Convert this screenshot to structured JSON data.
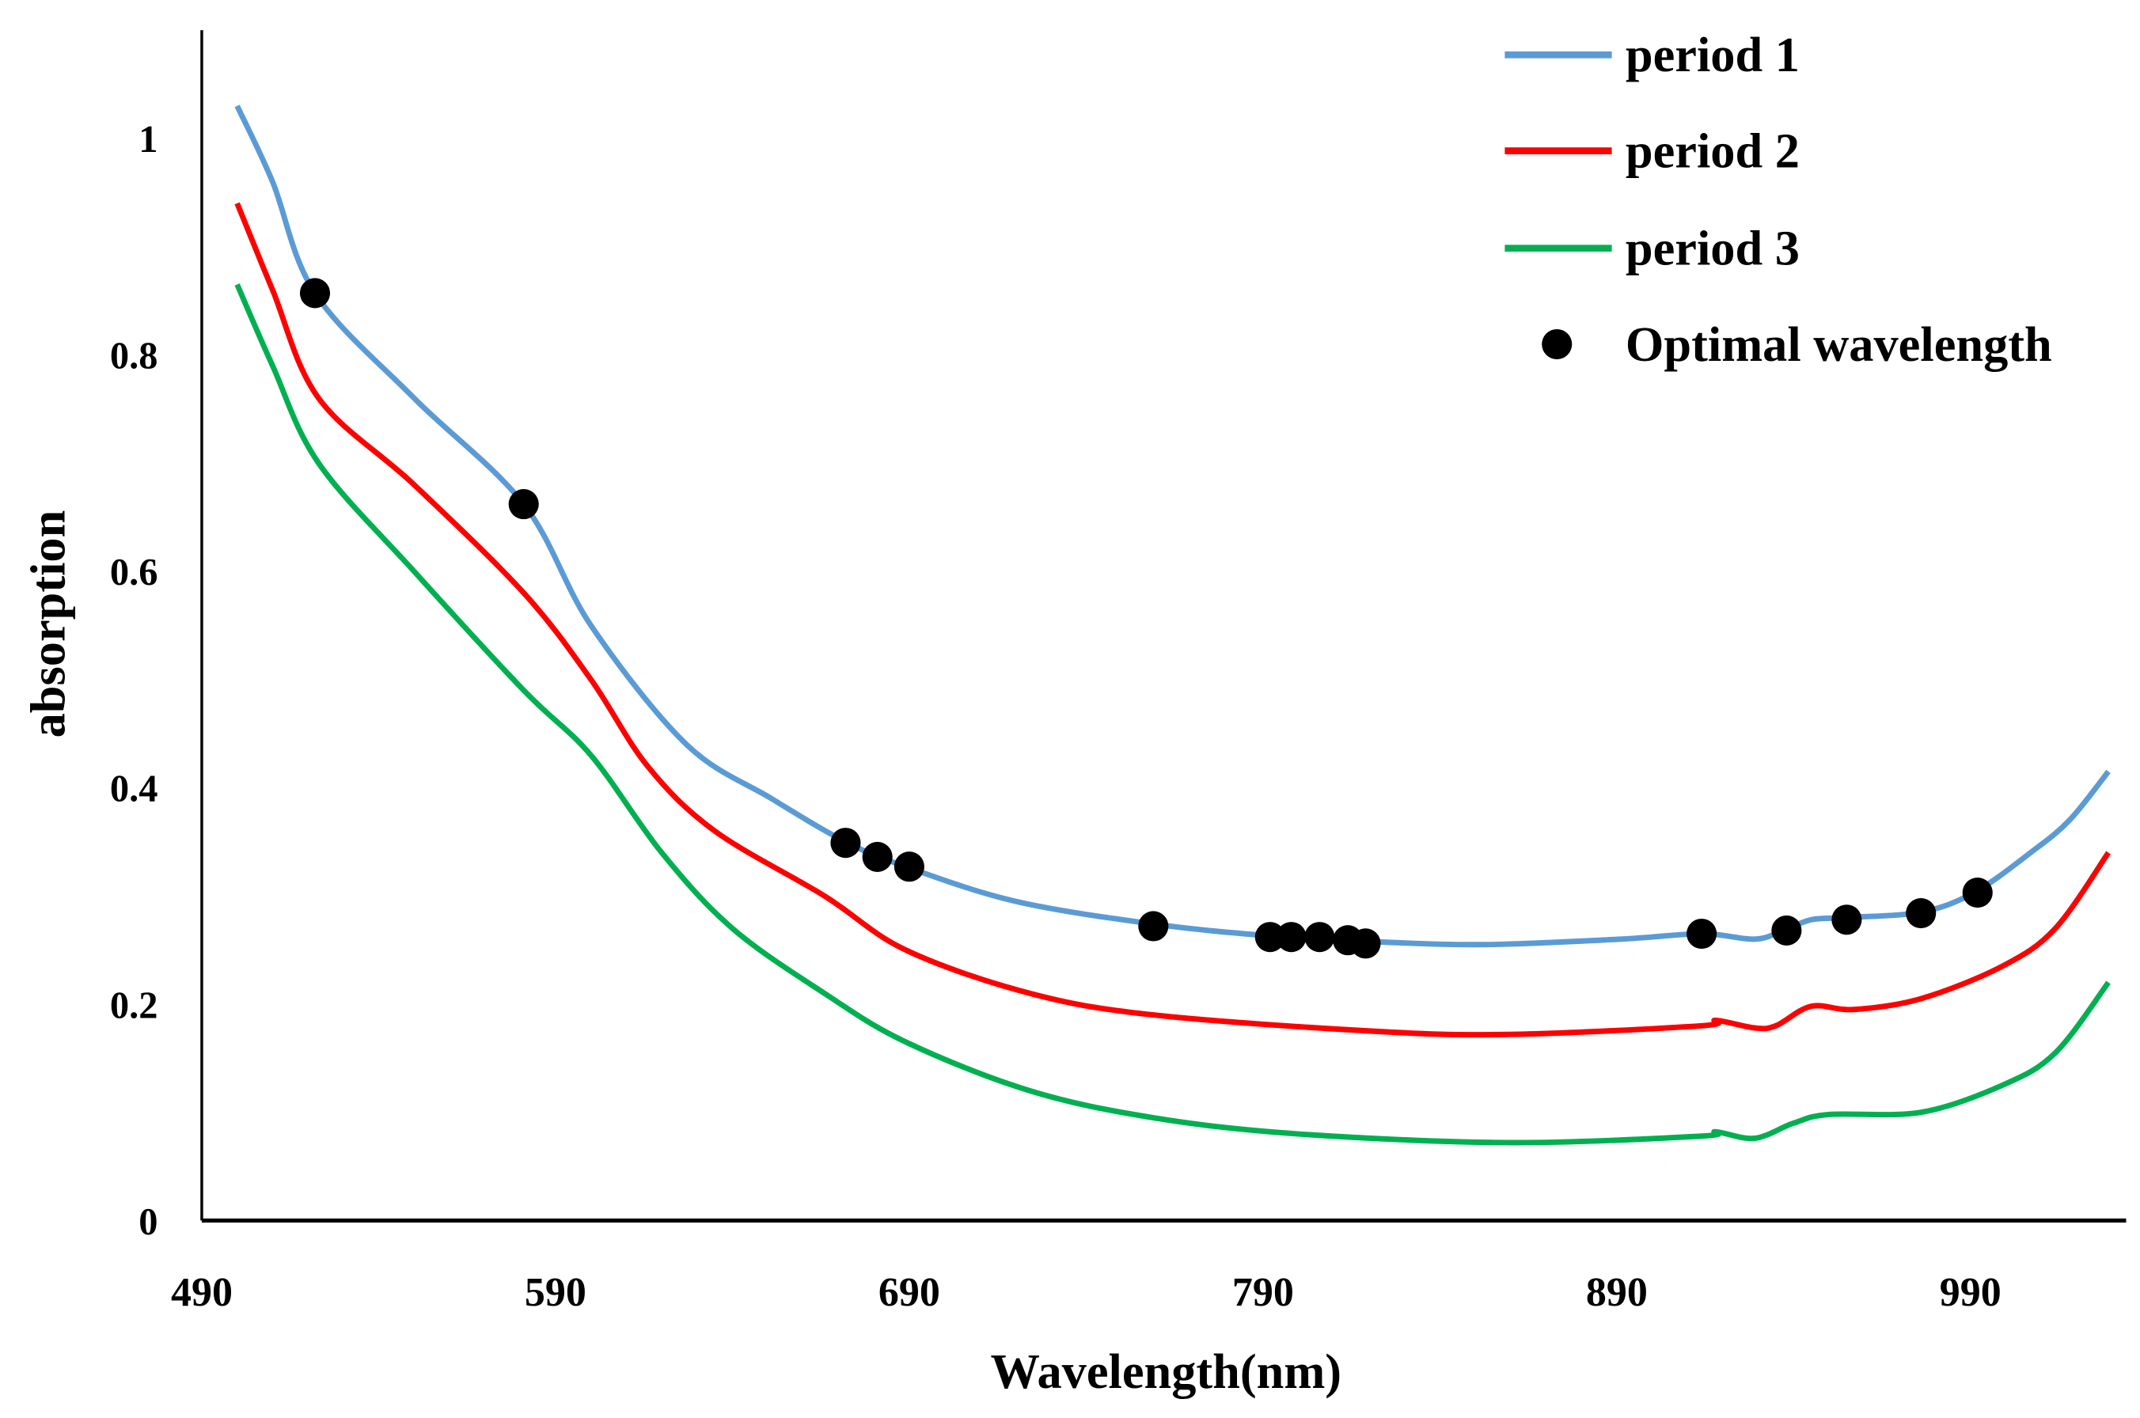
{
  "chart_data": {
    "type": "line",
    "title": "",
    "xlabel": "Wavelength(nm)",
    "ylabel": "absorption",
    "xlim": [
      490,
      1034
    ],
    "ylim": [
      0,
      1.1
    ],
    "xticks": [
      "490",
      "590",
      "690",
      "790",
      "890",
      "990"
    ],
    "yticks": [
      "0",
      "0.2",
      "0.4",
      "0.6",
      "0.8",
      "1"
    ],
    "grid": false,
    "legend_placement": "top-right",
    "series": [
      {
        "name": "period 1",
        "color": "#5b9bd5",
        "x": [
          500,
          510,
          522,
          550,
          581,
          600,
          627,
          651,
          672,
          689,
          720,
          759,
          792,
          819,
          852,
          891,
          914,
          929,
          937,
          945,
          955,
          976,
          991,
          1007,
          1018,
          1029
        ],
        "y": [
          1.03,
          0.96,
          0.857,
          0.76,
          0.662,
          0.55,
          0.44,
          0.39,
          0.35,
          0.327,
          0.295,
          0.274,
          0.263,
          0.258,
          0.255,
          0.26,
          0.265,
          0.26,
          0.268,
          0.278,
          0.28,
          0.285,
          0.303,
          0.34,
          0.37,
          0.415
        ]
      },
      {
        "name": "period 2",
        "color": "#ff0000",
        "x": [
          500,
          510,
          523,
          550,
          581,
          600,
          616,
          635,
          666,
          689,
          724,
          759,
          821,
          860,
          914,
          918,
          929,
          935,
          945,
          957,
          976,
          999,
          1014,
          1029
        ],
        "y": [
          0.94,
          0.86,
          0.76,
          0.68,
          0.58,
          0.5,
          0.42,
          0.36,
          0.3,
          0.25,
          0.21,
          0.19,
          0.175,
          0.172,
          0.18,
          0.185,
          0.178,
          0.18,
          0.198,
          0.195,
          0.205,
          0.235,
          0.27,
          0.34
        ]
      },
      {
        "name": "period 3",
        "color": "#00b050",
        "x": [
          500,
          510,
          523,
          550,
          581,
          600,
          620,
          640,
          666,
          689,
          724,
          759,
          800,
          860,
          914,
          918,
          929,
          940,
          950,
          976,
          999,
          1014,
          1029
        ],
        "y": [
          0.865,
          0.79,
          0.7,
          0.6,
          0.49,
          0.43,
          0.34,
          0.27,
          0.21,
          0.165,
          0.12,
          0.095,
          0.08,
          0.072,
          0.078,
          0.082,
          0.076,
          0.09,
          0.098,
          0.1,
          0.125,
          0.155,
          0.22
        ]
      },
      {
        "name": "Optimal wavelength",
        "color": "#000000",
        "marker": "circle",
        "x": [
          522,
          581,
          672,
          681,
          690,
          759,
          792,
          798,
          806,
          814,
          819,
          914,
          938,
          955,
          976,
          992
        ],
        "y": [
          0.857,
          0.662,
          0.349,
          0.336,
          0.327,
          0.272,
          0.262,
          0.262,
          0.262,
          0.259,
          0.256,
          0.265,
          0.268,
          0.278,
          0.284,
          0.303
        ]
      }
    ]
  }
}
